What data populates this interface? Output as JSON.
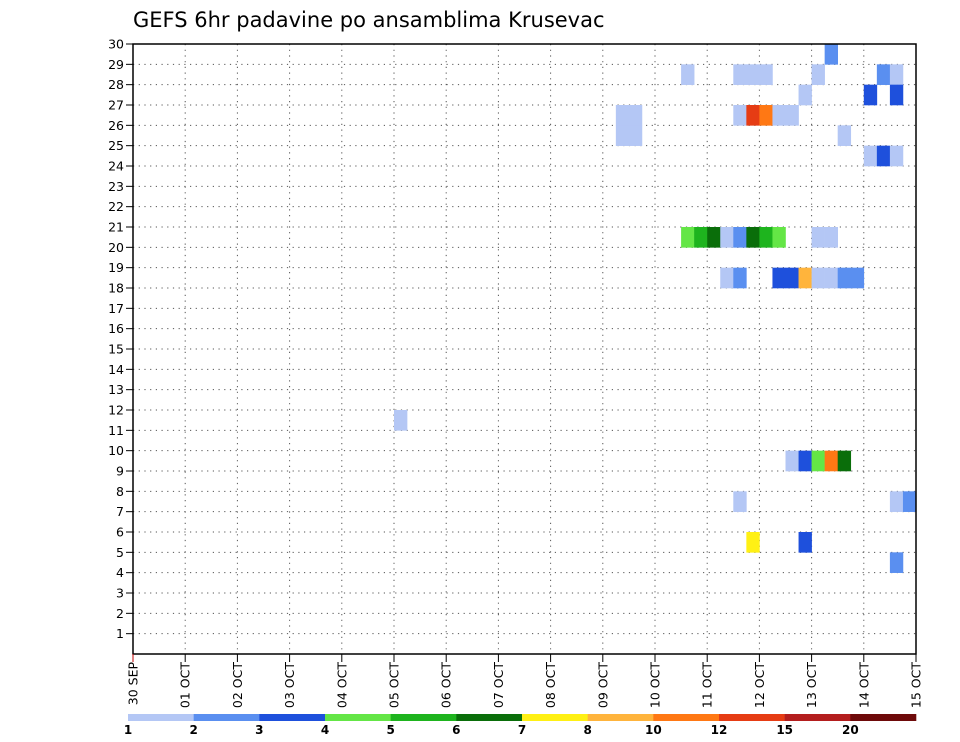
{
  "chart_data": {
    "type": "heatmap",
    "title": "GEFS 6hr padavine po ansamblima Krusevac",
    "xlabel": "",
    "ylabel": "",
    "x_tick_labels": [
      "30 SEP",
      "01 OCT",
      "02 OCT",
      "03 OCT",
      "04 OCT",
      "05 OCT",
      "06 OCT",
      "07 OCT",
      "08 OCT",
      "09 OCT",
      "10 OCT",
      "11 OCT",
      "12 OCT",
      "13 OCT",
      "14 OCT",
      "15 OCT"
    ],
    "x_range_days": [
      0,
      15
    ],
    "time_step_hours": 6,
    "y_tick_labels": [
      "1",
      "2",
      "3",
      "4",
      "5",
      "6",
      "7",
      "8",
      "9",
      "10",
      "11",
      "12",
      "13",
      "14",
      "15",
      "16",
      "17",
      "18",
      "19",
      "20",
      "21",
      "22",
      "23",
      "24",
      "25",
      "26",
      "27",
      "28",
      "29",
      "30"
    ],
    "y_range": [
      0,
      30
    ],
    "grid": true,
    "legend_placement": "bottom",
    "legend": {
      "labels": [
        "1",
        "2",
        "3",
        "4",
        "5",
        "6",
        "7",
        "8",
        "10",
        "12",
        "15",
        "20"
      ],
      "colors": [
        "#b4c7f5",
        "#5a8ff0",
        "#1e50dc",
        "#64e646",
        "#1eb41e",
        "#0a6e0a",
        "#fff014",
        "#ffb43c",
        "#ff7814",
        "#e63c14",
        "#b41e1e",
        "#6e0a0a"
      ]
    },
    "cells": [
      {
        "t": 10.5,
        "m": 29,
        "c": 0
      },
      {
        "t": 11.5,
        "m": 29,
        "c": 0
      },
      {
        "t": 11.75,
        "m": 29,
        "c": 0
      },
      {
        "t": 12.0,
        "m": 29,
        "c": 0
      },
      {
        "t": 13.0,
        "m": 29,
        "c": 0
      },
      {
        "t": 14.25,
        "m": 29,
        "c": 1
      },
      {
        "t": 14.5,
        "m": 29,
        "c": 0
      },
      {
        "t": 13.25,
        "m": 30,
        "c": 1
      },
      {
        "t": 12.75,
        "m": 28,
        "c": 0
      },
      {
        "t": 14.0,
        "m": 28,
        "c": 2
      },
      {
        "t": 14.5,
        "m": 28,
        "c": 2
      },
      {
        "t": 9.25,
        "m": 27,
        "c": 0
      },
      {
        "t": 9.5,
        "m": 27,
        "c": 0
      },
      {
        "t": 11.5,
        "m": 27,
        "c": 0
      },
      {
        "t": 11.75,
        "m": 27,
        "c": 9
      },
      {
        "t": 12.0,
        "m": 27,
        "c": 8
      },
      {
        "t": 12.25,
        "m": 27,
        "c": 0
      },
      {
        "t": 12.5,
        "m": 27,
        "c": 0
      },
      {
        "t": 9.25,
        "m": 26,
        "c": 0
      },
      {
        "t": 9.5,
        "m": 26,
        "c": 0
      },
      {
        "t": 13.5,
        "m": 26,
        "c": 0
      },
      {
        "t": 14.0,
        "m": 25,
        "c": 0
      },
      {
        "t": 14.25,
        "m": 25,
        "c": 2
      },
      {
        "t": 14.5,
        "m": 25,
        "c": 0
      },
      {
        "t": 10.5,
        "m": 21,
        "c": 3
      },
      {
        "t": 10.75,
        "m": 21,
        "c": 4
      },
      {
        "t": 11.0,
        "m": 21,
        "c": 5
      },
      {
        "t": 11.25,
        "m": 21,
        "c": 0
      },
      {
        "t": 11.5,
        "m": 21,
        "c": 1
      },
      {
        "t": 11.75,
        "m": 21,
        "c": 5
      },
      {
        "t": 12.0,
        "m": 21,
        "c": 4
      },
      {
        "t": 12.25,
        "m": 21,
        "c": 3
      },
      {
        "t": 13.0,
        "m": 21,
        "c": 0
      },
      {
        "t": 13.25,
        "m": 21,
        "c": 0
      },
      {
        "t": 11.25,
        "m": 19,
        "c": 0
      },
      {
        "t": 11.5,
        "m": 19,
        "c": 1
      },
      {
        "t": 12.25,
        "m": 19,
        "c": 2
      },
      {
        "t": 12.5,
        "m": 19,
        "c": 2
      },
      {
        "t": 12.75,
        "m": 19,
        "c": 7
      },
      {
        "t": 13.0,
        "m": 19,
        "c": 0
      },
      {
        "t": 13.25,
        "m": 19,
        "c": 0
      },
      {
        "t": 13.5,
        "m": 19,
        "c": 1
      },
      {
        "t": 13.75,
        "m": 19,
        "c": 1
      },
      {
        "t": 5.0,
        "m": 12,
        "c": 0
      },
      {
        "t": 12.5,
        "m": 10,
        "c": 0
      },
      {
        "t": 12.75,
        "m": 10,
        "c": 2
      },
      {
        "t": 13.0,
        "m": 10,
        "c": 3
      },
      {
        "t": 13.25,
        "m": 10,
        "c": 8
      },
      {
        "t": 13.5,
        "m": 10,
        "c": 5
      },
      {
        "t": 11.5,
        "m": 8,
        "c": 0
      },
      {
        "t": 14.5,
        "m": 8,
        "c": 0
      },
      {
        "t": 14.75,
        "m": 8,
        "c": 1
      },
      {
        "t": 11.75,
        "m": 6,
        "c": 6
      },
      {
        "t": 12.75,
        "m": 6,
        "c": 2
      },
      {
        "t": 14.5,
        "m": 5,
        "c": 1
      }
    ]
  }
}
